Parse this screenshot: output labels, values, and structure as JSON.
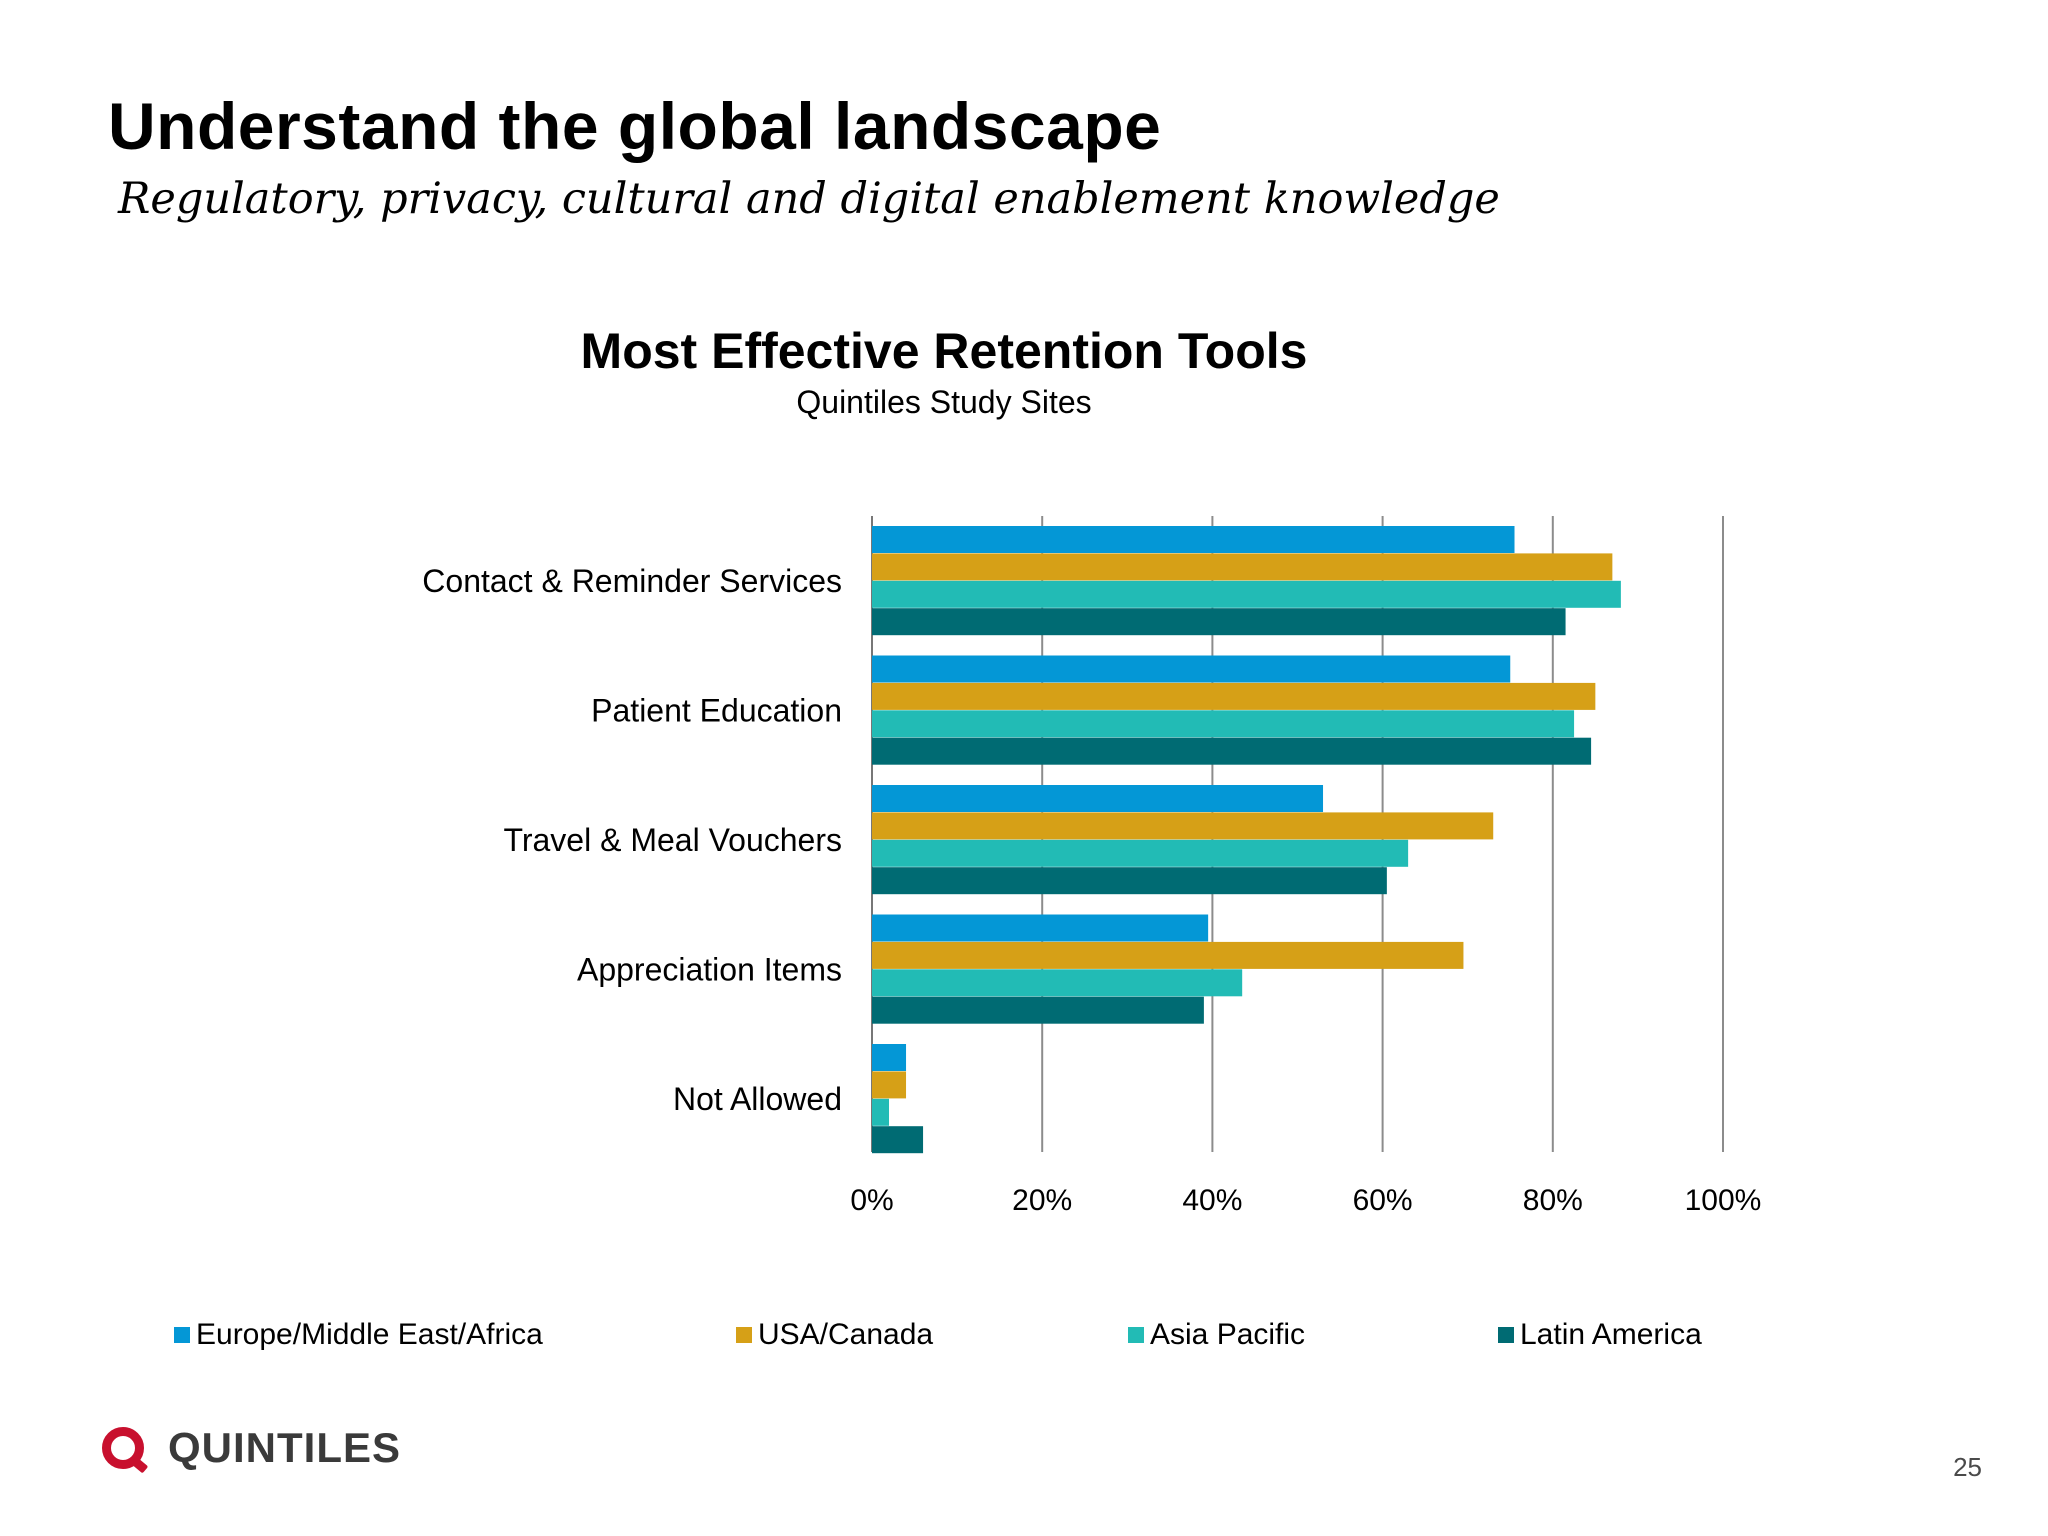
{
  "slide": {
    "title": "Understand the global landscape",
    "subtitle": "Regulatory, privacy, cultural and digital enablement knowledge",
    "page_number": "25",
    "logo_text": "QUINTILES"
  },
  "colors": {
    "europe": "#0497d6",
    "usa": "#d6a017",
    "asia": "#22bbb5",
    "latam": "#006b73",
    "logo": "#c8102e"
  },
  "chart_data": {
    "type": "bar",
    "orientation": "horizontal",
    "title": "Most Effective Retention Tools",
    "subtitle": "Quintiles Study Sites",
    "categories": [
      "Contact & Reminder Services",
      "Patient Education",
      "Travel & Meal Vouchers",
      "Appreciation Items",
      "Not Allowed"
    ],
    "series": [
      {
        "name": "Europe/Middle East/Africa",
        "color": "#0497d6",
        "values": [
          75.5,
          75,
          53,
          39.5,
          4
        ]
      },
      {
        "name": "USA/Canada",
        "color": "#d6a017",
        "values": [
          87,
          85,
          73,
          69.5,
          4
        ]
      },
      {
        "name": "Asia Pacific",
        "color": "#22bbb5",
        "values": [
          88,
          82.5,
          63,
          43.5,
          2
        ]
      },
      {
        "name": "Latin America",
        "color": "#006b73",
        "values": [
          81.5,
          84.5,
          60.5,
          39,
          6
        ]
      }
    ],
    "xlim": [
      0,
      100
    ],
    "ticks": [
      "0%",
      "20%",
      "40%",
      "60%",
      "80%",
      "100%"
    ],
    "grid": true,
    "legend_position": "bottom"
  }
}
